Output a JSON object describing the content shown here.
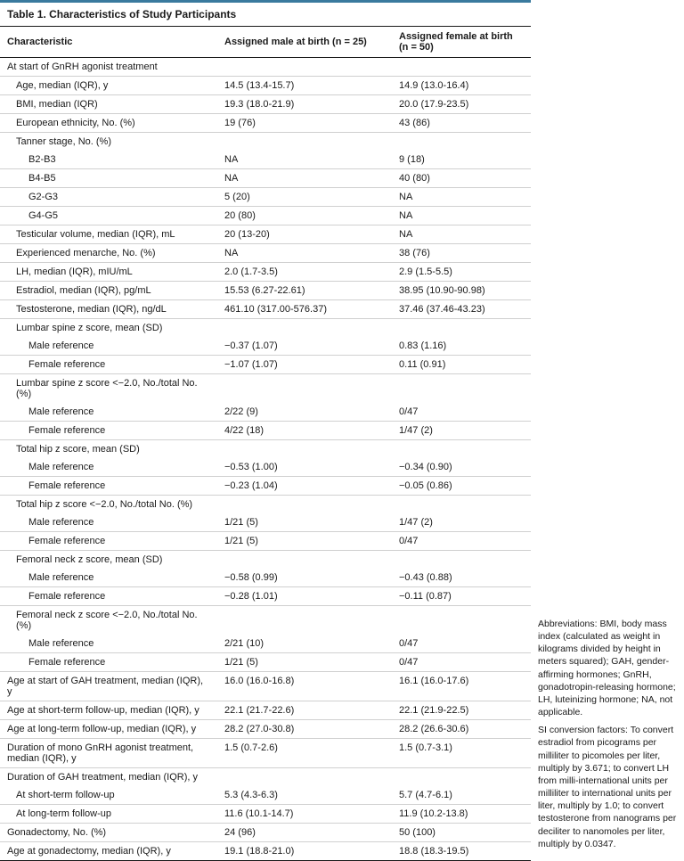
{
  "title": "Table 1. Characteristics of Study Participants",
  "headers": {
    "c": "Characteristic",
    "m": "Assigned male at birth (n = 25)",
    "f": "Assigned female at birth (n = 50)"
  },
  "rows": [
    {
      "c": "At start of GnRH agonist treatment",
      "m": "",
      "f": "",
      "ind": 0,
      "span": true
    },
    {
      "c": "Age, median (IQR), y",
      "m": "14.5 (13.4-15.7)",
      "f": "14.9 (13.0-16.4)",
      "ind": 1
    },
    {
      "c": "BMI, median (IQR)",
      "m": "19.3 (18.0-21.9)",
      "f": "20.0 (17.9-23.5)",
      "ind": 1
    },
    {
      "c": "European ethnicity, No. (%)",
      "m": "19 (76)",
      "f": "43 (86)",
      "ind": 1
    },
    {
      "c": "Tanner stage, No. (%)",
      "m": "",
      "f": "",
      "ind": 1,
      "nobot": true
    },
    {
      "c": "B2-B3",
      "m": "NA",
      "f": "9 (18)",
      "ind": 2
    },
    {
      "c": "B4-B5",
      "m": "NA",
      "f": "40 (80)",
      "ind": 2
    },
    {
      "c": "G2-G3",
      "m": "5 (20)",
      "f": "NA",
      "ind": 2
    },
    {
      "c": "G4-G5",
      "m": "20 (80)",
      "f": "NA",
      "ind": 2
    },
    {
      "c": "Testicular volume, median (IQR), mL",
      "m": "20 (13-20)",
      "f": "NA",
      "ind": 1
    },
    {
      "c": "Experienced menarche, No. (%)",
      "m": "NA",
      "f": "38 (76)",
      "ind": 1
    },
    {
      "c": "LH, median (IQR), mIU/mL",
      "m": "2.0 (1.7-3.5)",
      "f": "2.9 (1.5-5.5)",
      "ind": 1
    },
    {
      "c": "Estradiol, median (IQR), pg/mL",
      "m": "15.53 (6.27-22.61)",
      "f": "38.95 (10.90-90.98)",
      "ind": 1
    },
    {
      "c": "Testosterone, median (IQR), ng/dL",
      "m": "461.10 (317.00-576.37)",
      "f": "37.46 (37.46-43.23)",
      "ind": 1
    },
    {
      "c": "Lumbar spine z score, mean (SD)",
      "m": "",
      "f": "",
      "ind": 1,
      "nobot": true
    },
    {
      "c": "Male reference",
      "m": "−0.37 (1.07)",
      "f": "0.83 (1.16)",
      "ind": 2
    },
    {
      "c": "Female reference",
      "m": "−1.07 (1.07)",
      "f": "0.11 (0.91)",
      "ind": 2
    },
    {
      "c": "Lumbar spine z score <−2.0, No./total No. (%)",
      "m": "",
      "f": "",
      "ind": 1,
      "nobot": true
    },
    {
      "c": "Male reference",
      "m": "2/22 (9)",
      "f": "0/47",
      "ind": 2
    },
    {
      "c": "Female reference",
      "m": "4/22 (18)",
      "f": "1/47 (2)",
      "ind": 2
    },
    {
      "c": "Total hip z score, mean (SD)",
      "m": "",
      "f": "",
      "ind": 1,
      "nobot": true
    },
    {
      "c": "Male reference",
      "m": "−0.53 (1.00)",
      "f": "−0.34 (0.90)",
      "ind": 2
    },
    {
      "c": "Female reference",
      "m": "−0.23 (1.04)",
      "f": "−0.05 (0.86)",
      "ind": 2
    },
    {
      "c": "Total hip z score <−2.0, No./total No. (%)",
      "m": "",
      "f": "",
      "ind": 1,
      "nobot": true
    },
    {
      "c": "Male reference",
      "m": "1/21 (5)",
      "f": "1/47 (2)",
      "ind": 2
    },
    {
      "c": "Female reference",
      "m": "1/21 (5)",
      "f": "0/47",
      "ind": 2
    },
    {
      "c": "Femoral neck z score, mean (SD)",
      "m": "",
      "f": "",
      "ind": 1,
      "nobot": true
    },
    {
      "c": "Male reference",
      "m": "−0.58 (0.99)",
      "f": "−0.43 (0.88)",
      "ind": 2
    },
    {
      "c": "Female reference",
      "m": "−0.28 (1.01)",
      "f": "−0.11 (0.87)",
      "ind": 2
    },
    {
      "c": "Femoral neck z score <−2.0, No./total No. (%)",
      "m": "",
      "f": "",
      "ind": 1,
      "nobot": true
    },
    {
      "c": "Male reference",
      "m": "2/21 (10)",
      "f": "0/47",
      "ind": 2
    },
    {
      "c": "Female reference",
      "m": "1/21 (5)",
      "f": "0/47",
      "ind": 2
    },
    {
      "c": "Age at start of GAH treatment, median (IQR), y",
      "m": "16.0 (16.0-16.8)",
      "f": "16.1 (16.0-17.6)",
      "ind": 0
    },
    {
      "c": "Age at short-term follow-up, median (IQR), y",
      "m": "22.1 (21.7-22.6)",
      "f": "22.1 (21.9-22.5)",
      "ind": 0
    },
    {
      "c": "Age at long-term follow-up, median (IQR), y",
      "m": "28.2 (27.0-30.8)",
      "f": "28.2 (26.6-30.6)",
      "ind": 0
    },
    {
      "c": "Duration of mono GnRH agonist treatment, median (IQR), y",
      "m": "1.5 (0.7-2.6)",
      "f": "1.5 (0.7-3.1)",
      "ind": 0
    },
    {
      "c": "Duration of GAH treatment, median (IQR), y",
      "m": "",
      "f": "",
      "ind": 0,
      "nobot": true
    },
    {
      "c": "At short-term follow-up",
      "m": "5.3 (4.3-6.3)",
      "f": "5.7 (4.7-6.1)",
      "ind": 1
    },
    {
      "c": "At long-term follow-up",
      "m": "11.6 (10.1-14.7)",
      "f": "11.9 (10.2-13.8)",
      "ind": 1
    },
    {
      "c": "Gonadectomy, No. (%)",
      "m": "24 (96)",
      "f": "50 (100)",
      "ind": 0
    },
    {
      "c": "Age at gonadectomy, median (IQR), y",
      "m": "19.1 (18.8-21.0)",
      "f": "18.8 (18.3-19.5)",
      "ind": 0,
      "last": true
    }
  ],
  "footnotes": {
    "abbr": "Abbreviations: BMI, body mass index (calculated as weight in kilograms divided by height in meters squared); GAH, gender-affirming hormones; GnRH, gonadotropin-releasing hormone; LH, luteinizing hormone; NA, not applicable.",
    "si": "SI conversion factors: To convert estradiol from picograms per milliliter to picomoles per liter, multiply by 3.671; to convert LH from milli-international units per milliliter to international units per liter, multiply by 1.0; to convert testosterone from nanograms per deciliter to nanomoles per liter, multiply by 0.0347."
  }
}
